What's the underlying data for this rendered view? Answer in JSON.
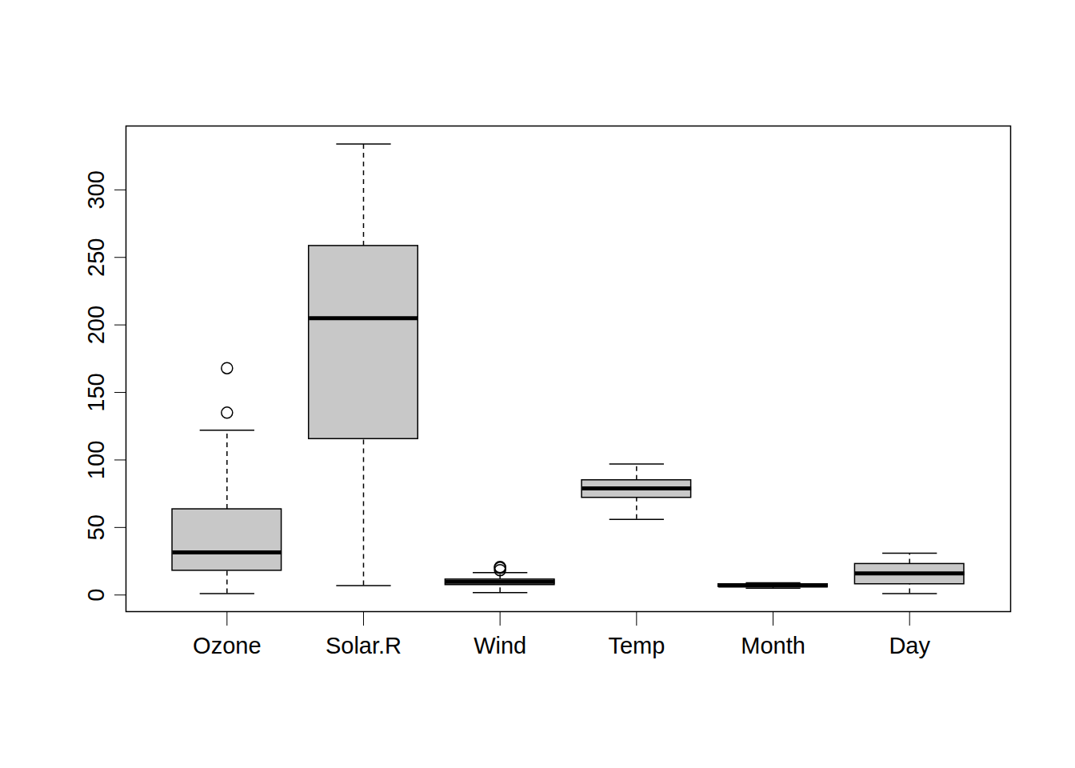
{
  "chart_data": {
    "type": "boxplot",
    "categories": [
      "Ozone",
      "Solar.R",
      "Wind",
      "Temp",
      "Month",
      "Day"
    ],
    "boxes": [
      {
        "whisker_low": 1,
        "q1": 18,
        "median": 31.5,
        "q3": 63.5,
        "whisker_high": 122,
        "outliers": [
          135,
          168
        ]
      },
      {
        "whisker_low": 7,
        "q1": 115.5,
        "median": 205,
        "q3": 258.5,
        "whisker_high": 334,
        "outliers": []
      },
      {
        "whisker_low": 1.7,
        "q1": 7.4,
        "median": 9.7,
        "q3": 11.5,
        "whisker_high": 16.6,
        "outliers": [
          18.4,
          20.1,
          20.7
        ]
      },
      {
        "whisker_low": 56,
        "q1": 72,
        "median": 79,
        "q3": 85,
        "whisker_high": 97,
        "outliers": []
      },
      {
        "whisker_low": 5,
        "q1": 6,
        "median": 7,
        "q3": 8,
        "whisker_high": 9,
        "outliers": []
      },
      {
        "whisker_low": 1,
        "q1": 8,
        "median": 16,
        "q3": 23,
        "whisker_high": 31,
        "outliers": []
      }
    ],
    "color": "#c8c8c8",
    "ylim": [
      -12.3,
      347.3
    ],
    "yticks": [
      0,
      50,
      100,
      150,
      200,
      250,
      300
    ]
  }
}
